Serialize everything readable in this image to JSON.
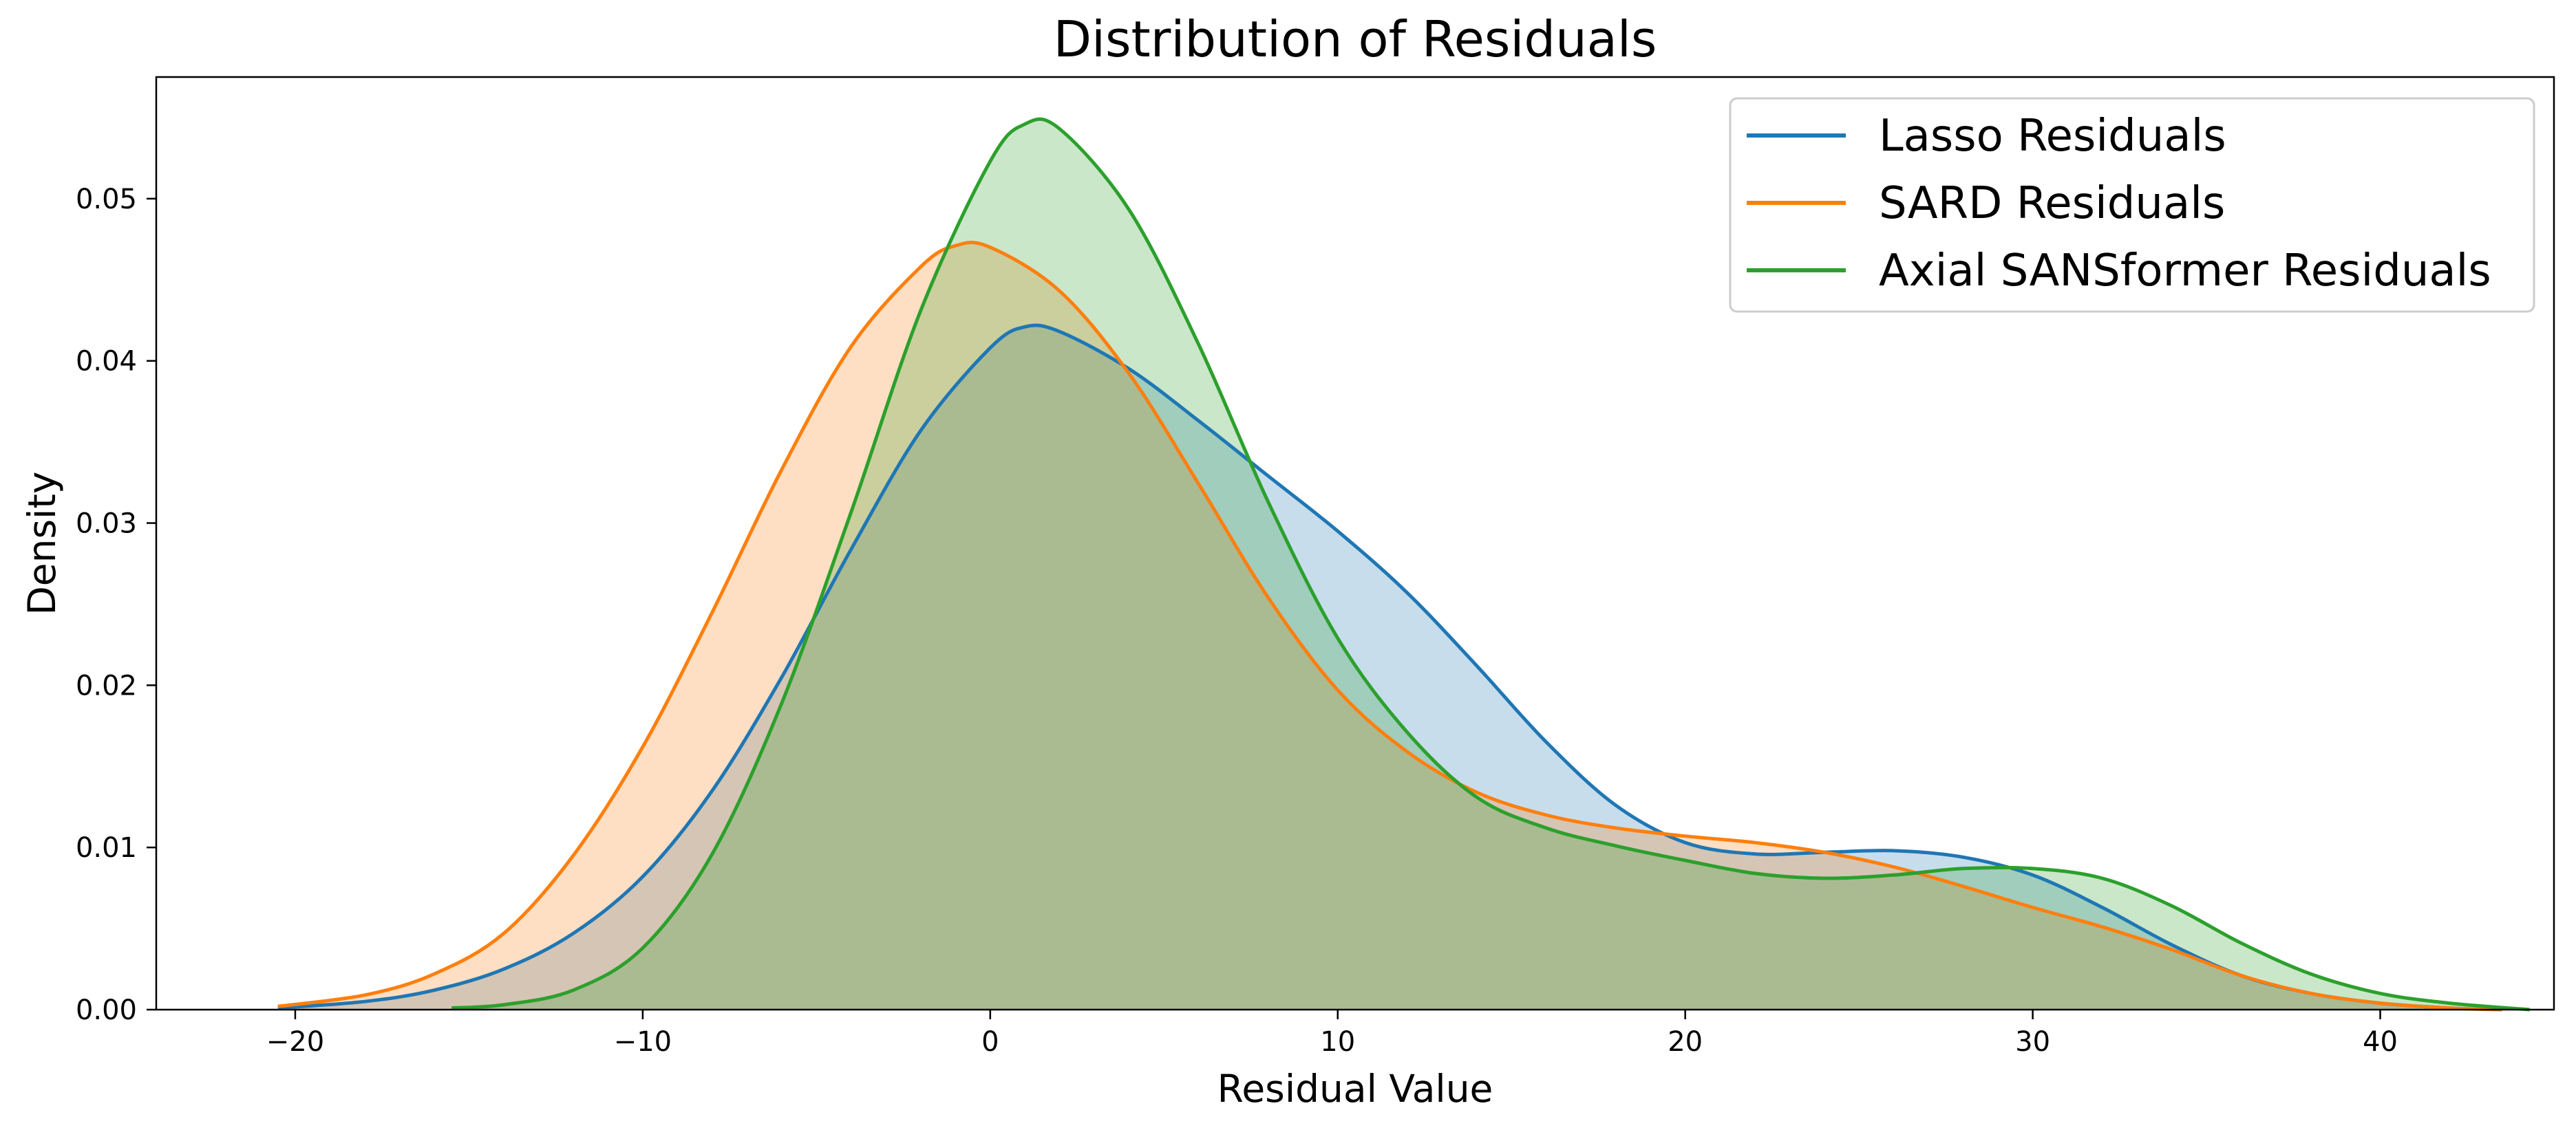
{
  "chart_data": {
    "type": "area",
    "title": "Distribution of Residuals",
    "xlabel": "Residual Value",
    "ylabel": "Density",
    "xlim": [
      -24,
      45
    ],
    "ylim": [
      0,
      0.0575
    ],
    "xticks": [
      -20,
      -10,
      0,
      10,
      20,
      30,
      40
    ],
    "xtick_labels": [
      "−20",
      "−10",
      "0",
      "10",
      "20",
      "30",
      "40"
    ],
    "yticks": [
      0.0,
      0.01,
      0.02,
      0.03,
      0.04,
      0.05
    ],
    "ytick_labels": [
      "0.00",
      "0.01",
      "0.02",
      "0.03",
      "0.04",
      "0.05"
    ],
    "grid": false,
    "legend_position": "top-right",
    "series": [
      {
        "name": "Lasso Residuals",
        "color": "#1f77b4",
        "x": [
          -20.5,
          -18,
          -16,
          -14,
          -12,
          -10,
          -8,
          -6,
          -4,
          -2,
          0,
          1,
          2,
          4,
          6,
          8,
          10,
          12,
          14,
          16,
          18,
          20,
          22,
          24,
          26,
          28,
          30,
          32,
          34,
          36,
          38,
          40,
          42,
          43.5
        ],
        "y": [
          0.0001,
          0.0005,
          0.0012,
          0.0025,
          0.0047,
          0.0082,
          0.0135,
          0.0205,
          0.0284,
          0.0357,
          0.0408,
          0.0421,
          0.0418,
          0.0395,
          0.0363,
          0.0329,
          0.0295,
          0.0257,
          0.0212,
          0.0165,
          0.0126,
          0.0103,
          0.0096,
          0.0097,
          0.0098,
          0.0094,
          0.0083,
          0.0063,
          0.004,
          0.0021,
          0.001,
          0.0004,
          0.0001,
          0.0
        ]
      },
      {
        "name": "SARD Residuals",
        "color": "#ff7f0e",
        "x": [
          -20.5,
          -18,
          -16,
          -14,
          -12,
          -10,
          -8,
          -6,
          -4,
          -2,
          -1,
          0,
          2,
          4,
          6,
          8,
          10,
          12,
          14,
          16,
          18,
          20,
          22,
          24,
          26,
          28,
          30,
          32,
          34,
          36,
          38,
          40,
          42,
          43.5
        ],
        "y": [
          0.0002,
          0.0009,
          0.0022,
          0.0047,
          0.0095,
          0.0162,
          0.0245,
          0.0333,
          0.0409,
          0.0458,
          0.0471,
          0.047,
          0.0443,
          0.0392,
          0.0324,
          0.0254,
          0.0197,
          0.0159,
          0.0134,
          0.012,
          0.0112,
          0.0107,
          0.0103,
          0.0097,
          0.0088,
          0.0076,
          0.0063,
          0.0051,
          0.0037,
          0.0021,
          0.001,
          0.0004,
          0.0001,
          0.0
        ]
      },
      {
        "name": "Axial SANSformer Residuals",
        "color": "#2ca02c",
        "x": [
          -15.5,
          -14,
          -12,
          -10,
          -8,
          -6,
          -4,
          -2,
          0,
          1,
          2,
          4,
          6,
          8,
          10,
          12,
          14,
          16,
          18,
          20,
          22,
          24,
          26,
          28,
          30,
          32,
          34,
          36,
          38,
          40,
          42,
          44.3
        ],
        "y": [
          0.0001,
          0.0003,
          0.0012,
          0.0038,
          0.0096,
          0.0189,
          0.0307,
          0.0431,
          0.0523,
          0.0546,
          0.0543,
          0.0493,
          0.041,
          0.0313,
          0.0229,
          0.0171,
          0.0131,
          0.0112,
          0.0101,
          0.0092,
          0.0084,
          0.0081,
          0.0083,
          0.0087,
          0.0087,
          0.0081,
          0.0064,
          0.0041,
          0.0022,
          0.001,
          0.0004,
          0.0
        ]
      }
    ]
  }
}
